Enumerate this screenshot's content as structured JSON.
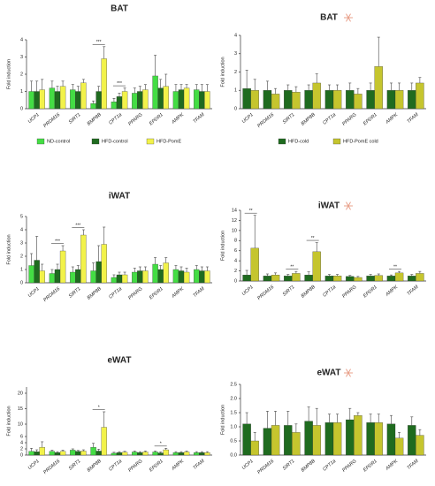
{
  "chart_data": [
    {
      "type": "bar",
      "title": "BAT",
      "y_label": "Fold induction",
      "categories": [
        "UCP1",
        "PRDM16",
        "SIRT1",
        "BMP8B",
        "CPT1a",
        "PPARG",
        "EPDR1",
        "AMPK",
        "TFAM"
      ],
      "series": [
        {
          "name": "ND-control",
          "color": "#44dd44",
          "values": [
            1.0,
            1.2,
            1.1,
            0.3,
            0.4,
            0.9,
            1.9,
            1.0,
            1.1
          ],
          "errors": [
            0.6,
            0.4,
            0.3,
            0.15,
            0.2,
            0.3,
            1.2,
            0.4,
            0.3
          ]
        },
        {
          "name": "HFD-control",
          "color": "#1f6b1f",
          "values": [
            1.0,
            1.0,
            1.0,
            1.0,
            0.7,
            1.0,
            1.2,
            1.1,
            1.0
          ],
          "errors": [
            0.6,
            0.3,
            0.3,
            0.3,
            0.2,
            0.3,
            0.5,
            0.3,
            0.4
          ]
        },
        {
          "name": "HFD-PomE",
          "color": "#f2f24a",
          "values": [
            1.1,
            1.3,
            1.5,
            2.9,
            1.0,
            1.1,
            1.3,
            1.2,
            1.0
          ],
          "errors": [
            0.6,
            0.3,
            0.2,
            0.7,
            0.2,
            0.3,
            0.7,
            0.2,
            0.4
          ]
        }
      ],
      "annotations": [
        {
          "text": "***",
          "category": 3
        },
        {
          "text": "***",
          "category": 4
        }
      ],
      "ylim": [
        0,
        4
      ],
      "yticks": [
        0,
        1,
        2,
        3,
        4
      ],
      "legend": true
    },
    {
      "type": "bar",
      "title": "BAT",
      "y_label": "Fold induction",
      "categories": [
        "UCP1",
        "PRDM16",
        "SIRT1",
        "BMP8B",
        "CPT1a",
        "PPARG",
        "EPDR1",
        "AMPK",
        "TFAM"
      ],
      "series": [
        {
          "name": "HFD-cold",
          "color": "#1f6b1f",
          "values": [
            1.1,
            1.0,
            1.0,
            1.0,
            1.0,
            1.0,
            1.0,
            1.0,
            1.0
          ],
          "errors": [
            1.0,
            0.5,
            0.3,
            0.3,
            0.3,
            0.4,
            0.4,
            0.4,
            0.4
          ]
        },
        {
          "name": "HFD-PomE cold",
          "color": "#c5c52e",
          "values": [
            1.0,
            0.8,
            0.9,
            1.4,
            1.0,
            0.8,
            2.3,
            1.0,
            1.4
          ],
          "errors": [
            0.6,
            0.3,
            0.3,
            0.5,
            0.3,
            0.3,
            1.6,
            0.4,
            0.3
          ]
        }
      ],
      "annotations": [],
      "ylim": [
        0,
        4
      ],
      "yticks": [
        0,
        1,
        2,
        3,
        4
      ],
      "legend": true,
      "cold": true
    },
    {
      "type": "bar",
      "title": "iWAT",
      "y_label": "Fold induction",
      "categories": [
        "UCP1",
        "PRDM16",
        "SIRT1",
        "BMP8B",
        "CPT1a",
        "PPARG",
        "EPDR1",
        "AMPK",
        "TFAM"
      ],
      "series": [
        {
          "name": "ND-control",
          "color": "#44dd44",
          "values": [
            1.3,
            0.7,
            0.8,
            0.9,
            0.4,
            0.8,
            1.4,
            1.0,
            1.0
          ],
          "errors": [
            0.9,
            0.3,
            0.4,
            0.6,
            0.2,
            0.3,
            0.5,
            0.3,
            0.3
          ]
        },
        {
          "name": "HFD-control",
          "color": "#1f6b1f",
          "values": [
            1.7,
            1.0,
            1.0,
            1.6,
            0.6,
            0.9,
            1.0,
            0.9,
            0.9
          ],
          "errors": [
            1.8,
            0.4,
            0.3,
            1.2,
            0.2,
            0.3,
            0.3,
            0.3,
            0.3
          ]
        },
        {
          "name": "HFD-PomE",
          "color": "#f2f24a",
          "values": [
            0.9,
            2.4,
            3.6,
            2.9,
            0.6,
            0.9,
            1.5,
            0.8,
            0.9
          ],
          "errors": [
            0.5,
            0.4,
            0.4,
            1.3,
            0.2,
            0.3,
            0.4,
            0.3,
            0.3
          ]
        }
      ],
      "annotations": [
        {
          "text": "***",
          "category": 1
        },
        {
          "text": "***",
          "category": 2
        }
      ],
      "ylim": [
        0,
        5
      ],
      "yticks": [
        0,
        1,
        2,
        3,
        4,
        5
      ],
      "legend": false
    },
    {
      "type": "bar",
      "title": "iWAT",
      "y_label": "Fold induction",
      "categories": [
        "UCP1",
        "PRDM16",
        "SIRT1",
        "BMP8B",
        "CPT1a",
        "PPARG",
        "EPDR1",
        "AMPK",
        "TFAM"
      ],
      "series": [
        {
          "name": "HFD-cold",
          "color": "#1f6b1f",
          "values": [
            1.2,
            1.0,
            1.0,
            1.2,
            1.0,
            0.9,
            1.0,
            1.0,
            1.0
          ],
          "errors": [
            0.9,
            0.4,
            0.3,
            0.6,
            0.3,
            0.2,
            0.3,
            0.2,
            0.3
          ]
        },
        {
          "name": "HFD-PomE cold",
          "color": "#c5c52e",
          "values": [
            6.5,
            1.2,
            1.5,
            5.8,
            1.0,
            0.7,
            1.1,
            1.6,
            1.5
          ],
          "errors": [
            6.5,
            0.4,
            0.4,
            1.8,
            0.3,
            0.2,
            0.3,
            0.3,
            0.4
          ]
        }
      ],
      "annotations": [
        {
          "text": "**",
          "category": 0
        },
        {
          "text": "**",
          "category": 2
        },
        {
          "text": "**",
          "category": 3
        },
        {
          "text": "**",
          "category": 7
        }
      ],
      "ylim": [
        0,
        14
      ],
      "yticks": [
        0,
        2,
        4,
        6,
        8,
        10,
        12,
        14
      ],
      "legend": false,
      "cold": true
    },
    {
      "type": "bar",
      "title": "eWAT",
      "y_label": "Fold induction",
      "categories": [
        "UCP1",
        "PRDM16",
        "SIRT1",
        "BMP8B",
        "CPT1a",
        "PPARG",
        "EPDR1",
        "AMPK",
        "TFAM"
      ],
      "series": [
        {
          "name": "ND-control",
          "color": "#44dd44",
          "values": [
            1.2,
            1.2,
            1.6,
            2.5,
            0.6,
            1.0,
            1.0,
            0.8,
            0.8
          ],
          "errors": [
            1.0,
            0.4,
            0.4,
            1.3,
            0.3,
            0.3,
            0.3,
            0.3,
            0.3
          ]
        },
        {
          "name": "HFD-control",
          "color": "#1f6b1f",
          "values": [
            1.1,
            0.8,
            1.2,
            1.3,
            0.8,
            0.8,
            0.7,
            0.8,
            0.8
          ],
          "errors": [
            0.6,
            0.3,
            0.3,
            0.6,
            0.3,
            0.3,
            0.3,
            0.3,
            0.3
          ]
        },
        {
          "name": "HFD-PomE",
          "color": "#f2f24a",
          "values": [
            2.5,
            1.2,
            1.3,
            9.0,
            0.9,
            1.0,
            1.7,
            1.0,
            0.8
          ],
          "errors": [
            1.8,
            0.4,
            0.4,
            5.0,
            0.3,
            0.3,
            0.5,
            0.3,
            0.3
          ]
        }
      ],
      "annotations": [
        {
          "text": "*",
          "category": 3
        },
        {
          "text": "*",
          "category": 6
        }
      ],
      "ylim": [
        0,
        22
      ],
      "yticks": [
        0,
        2,
        4,
        6,
        10,
        15,
        20
      ],
      "legend": false
    },
    {
      "type": "bar",
      "title": "eWAT",
      "y_label": "Fold induction",
      "categories": [
        "UCP1",
        "PRDM16",
        "SIRT1",
        "BMP8B",
        "CPT1a",
        "PPARG",
        "EPDR1",
        "AMPK",
        "TFAM"
      ],
      "series": [
        {
          "name": "HFD-cold",
          "color": "#1f6b1f",
          "values": [
            1.1,
            0.95,
            1.05,
            1.2,
            1.15,
            1.25,
            1.15,
            1.1,
            1.05
          ],
          "errors": [
            0.4,
            0.6,
            0.5,
            0.5,
            0.3,
            0.4,
            0.3,
            0.3,
            0.3
          ]
        },
        {
          "name": "HFD-PomE cold",
          "color": "#c5c52e",
          "values": [
            0.5,
            1.05,
            0.8,
            1.05,
            1.15,
            1.4,
            1.15,
            0.6,
            0.7
          ],
          "errors": [
            0.3,
            0.5,
            0.3,
            0.6,
            0.3,
            0.1,
            0.3,
            0.2,
            0.2
          ]
        }
      ],
      "annotations": [],
      "ylim": [
        0,
        2.5
      ],
      "yticks": [
        {
          "value": 0,
          "label": "0.0"
        },
        0.5,
        {
          "value": 1,
          "label": "1.0"
        },
        1.5,
        {
          "value": 2,
          "label": "2.0"
        },
        2.5
      ],
      "legend": false,
      "cold": true
    }
  ]
}
